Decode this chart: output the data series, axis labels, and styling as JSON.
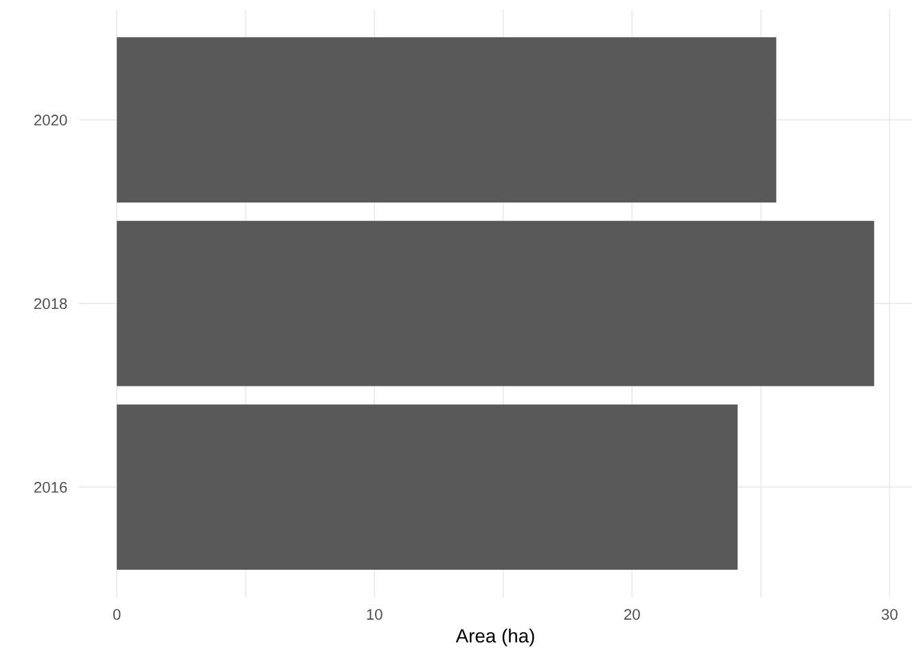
{
  "chart_data": {
    "type": "bar",
    "orientation": "horizontal",
    "xlabel": "Area (ha)",
    "categories": [
      "2020",
      "2018",
      "2016"
    ],
    "values": [
      25.6,
      29.4,
      24.1
    ],
    "color": "#595959",
    "xlim": [
      -1.47,
      30.87
    ],
    "xticks": [
      0,
      {
        "value": 5,
        "label": null
      },
      10,
      {
        "value": 15,
        "label": null
      },
      20,
      {
        "value": 25,
        "label": null
      },
      30
    ],
    "grid": true
  }
}
